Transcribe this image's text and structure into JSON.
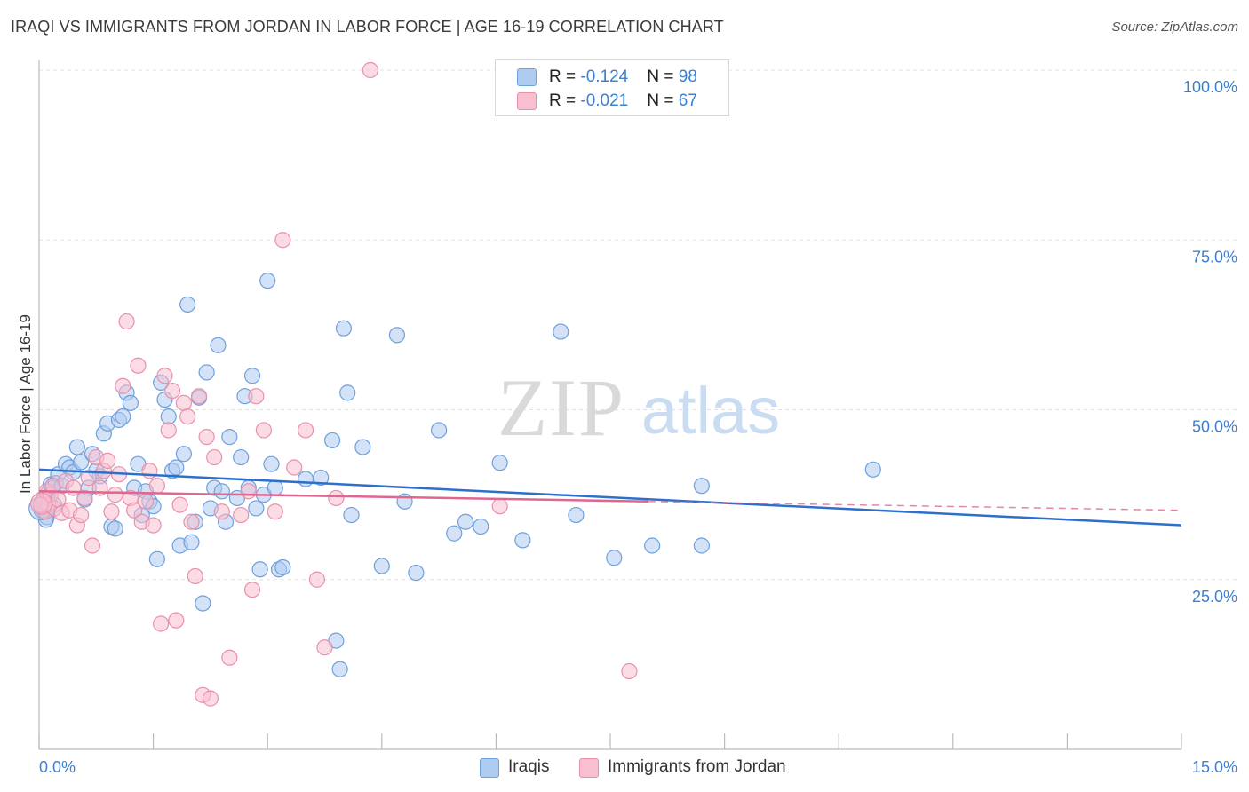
{
  "title": "IRAQI VS IMMIGRANTS FROM JORDAN IN LABOR FORCE | AGE 16-19 CORRELATION CHART",
  "source": "Source: ZipAtlas.com",
  "watermark": {
    "zip": "ZIP",
    "atlas": "atlas"
  },
  "legend": {
    "rows": [
      {
        "r_label": "R = ",
        "r_value": "-0.124",
        "n_label": "N = ",
        "n_value": "98",
        "color": "#aecbf0"
      },
      {
        "r_label": "R = ",
        "r_value": "-0.021",
        "n_label": "N = ",
        "n_value": "67",
        "color": "#f7bfd0"
      }
    ]
  },
  "bottom_legend": [
    {
      "label": "Iraqis",
      "color": "#aecbf0"
    },
    {
      "label": "Immigrants from Jordan",
      "color": "#f7bfd0"
    }
  ],
  "colors": {
    "blue_fill": "#aecbf0",
    "blue_stroke": "#6ea0dc",
    "blue_line": "#2d6fcc",
    "pink_fill": "#f7bfd0",
    "pink_stroke": "#e890ac",
    "pink_line": "#e0668f",
    "tick_text": "#3d7fd0",
    "grid": "#e0e0e0"
  },
  "chart_data": {
    "type": "scatter",
    "title": "IRAQI VS IMMIGRANTS FROM JORDAN IN LABOR FORCE | AGE 16-19 CORRELATION CHART",
    "xlabel": "",
    "ylabel": "In Labor Force | Age 16-19",
    "xlim": [
      0,
      15
    ],
    "ylim": [
      0,
      100
    ],
    "x_tick_labels": [
      "0.0%",
      "15.0%"
    ],
    "y_ticks": [
      25,
      50,
      75,
      100
    ],
    "y_tick_labels": [
      "25.0%",
      "50.0%",
      "75.0%",
      "100.0%"
    ],
    "grid": "horizontal dashed",
    "legend_position": "top-center",
    "series": [
      {
        "name": "Iraqis",
        "r": -0.124,
        "n": 98,
        "trend": {
          "x0": 0,
          "y0": 41.2,
          "x1": 15,
          "y1": 33.0,
          "dashed_from": null
        },
        "points": [
          [
            0.05,
            35.0
          ],
          [
            0.08,
            36.5
          ],
          [
            0.1,
            34.2
          ],
          [
            0.12,
            37.8
          ],
          [
            0.15,
            39.0
          ],
          [
            0.18,
            38.5
          ],
          [
            0.2,
            36.0
          ],
          [
            0.22,
            39.2
          ],
          [
            0.25,
            40.5
          ],
          [
            0.3,
            38.8
          ],
          [
            0.35,
            42.0
          ],
          [
            0.4,
            41.5
          ],
          [
            0.45,
            40.8
          ],
          [
            0.5,
            44.5
          ],
          [
            0.55,
            42.3
          ],
          [
            0.6,
            36.8
          ],
          [
            0.65,
            38.5
          ],
          [
            0.7,
            43.5
          ],
          [
            0.75,
            41.0
          ],
          [
            0.8,
            40.2
          ],
          [
            0.85,
            46.5
          ],
          [
            0.9,
            48.0
          ],
          [
            0.95,
            32.8
          ],
          [
            1.0,
            32.5
          ],
          [
            1.05,
            48.5
          ],
          [
            1.1,
            49.0
          ],
          [
            1.15,
            52.5
          ],
          [
            1.2,
            51.0
          ],
          [
            1.25,
            38.5
          ],
          [
            1.3,
            42.0
          ],
          [
            1.35,
            34.5
          ],
          [
            1.4,
            38.0
          ],
          [
            1.45,
            36.5
          ],
          [
            1.5,
            35.8
          ],
          [
            1.55,
            28.0
          ],
          [
            1.6,
            54.0
          ],
          [
            1.65,
            51.5
          ],
          [
            1.7,
            49.0
          ],
          [
            1.75,
            41.0
          ],
          [
            1.8,
            41.5
          ],
          [
            1.85,
            30.0
          ],
          [
            1.9,
            43.5
          ],
          [
            1.95,
            65.5
          ],
          [
            2.0,
            30.5
          ],
          [
            2.05,
            33.5
          ],
          [
            2.1,
            51.8
          ],
          [
            2.15,
            21.5
          ],
          [
            2.2,
            55.5
          ],
          [
            2.25,
            35.5
          ],
          [
            2.3,
            38.5
          ],
          [
            2.35,
            59.5
          ],
          [
            2.4,
            38.0
          ],
          [
            2.45,
            33.5
          ],
          [
            2.5,
            46.0
          ],
          [
            2.6,
            37.0
          ],
          [
            2.65,
            43.0
          ],
          [
            2.7,
            52.0
          ],
          [
            2.75,
            38.5
          ],
          [
            2.8,
            55.0
          ],
          [
            2.85,
            35.5
          ],
          [
            2.9,
            26.5
          ],
          [
            2.95,
            37.5
          ],
          [
            3.0,
            69.0
          ],
          [
            3.05,
            42.0
          ],
          [
            3.1,
            38.5
          ],
          [
            3.15,
            26.5
          ],
          [
            3.2,
            26.8
          ],
          [
            3.5,
            39.8
          ],
          [
            3.7,
            40.0
          ],
          [
            3.85,
            45.5
          ],
          [
            3.9,
            16.0
          ],
          [
            3.95,
            11.8
          ],
          [
            4.0,
            62.0
          ],
          [
            4.05,
            52.5
          ],
          [
            4.1,
            34.5
          ],
          [
            4.25,
            44.5
          ],
          [
            4.5,
            27.0
          ],
          [
            4.7,
            61.0
          ],
          [
            4.8,
            36.5
          ],
          [
            4.95,
            26.0
          ],
          [
            5.25,
            47.0
          ],
          [
            5.45,
            31.8
          ],
          [
            5.6,
            33.5
          ],
          [
            5.8,
            32.8
          ],
          [
            6.05,
            42.2
          ],
          [
            6.35,
            30.8
          ],
          [
            6.85,
            61.5
          ],
          [
            7.05,
            34.5
          ],
          [
            7.55,
            28.2
          ],
          [
            8.05,
            30.0
          ],
          [
            8.7,
            38.8
          ],
          [
            8.7,
            30.0
          ],
          [
            10.95,
            41.2
          ],
          [
            0.02,
            36.0
          ],
          [
            0.03,
            35.2
          ],
          [
            0.06,
            37.0
          ],
          [
            0.09,
            33.8
          ],
          [
            0.12,
            36.2
          ]
        ]
      },
      {
        "name": "Immigrants from Jordan",
        "r": -0.021,
        "n": 67,
        "trend": {
          "x0": 0,
          "y0": 38.0,
          "x1": 15,
          "y1": 35.2,
          "solid_until": 8.0
        },
        "points": [
          [
            0.05,
            36.5
          ],
          [
            0.08,
            35.0
          ],
          [
            0.1,
            38.0
          ],
          [
            0.12,
            36.0
          ],
          [
            0.15,
            37.5
          ],
          [
            0.18,
            38.8
          ],
          [
            0.2,
            35.5
          ],
          [
            0.25,
            36.8
          ],
          [
            0.3,
            34.8
          ],
          [
            0.35,
            39.5
          ],
          [
            0.4,
            35.2
          ],
          [
            0.45,
            38.5
          ],
          [
            0.5,
            33.0
          ],
          [
            0.55,
            34.5
          ],
          [
            0.6,
            37.0
          ],
          [
            0.65,
            40.0
          ],
          [
            0.7,
            30.0
          ],
          [
            0.75,
            43.0
          ],
          [
            0.8,
            38.5
          ],
          [
            0.85,
            41.0
          ],
          [
            0.9,
            42.5
          ],
          [
            0.95,
            35.0
          ],
          [
            1.0,
            37.5
          ],
          [
            1.05,
            40.5
          ],
          [
            1.1,
            53.5
          ],
          [
            1.15,
            63.0
          ],
          [
            1.2,
            37.0
          ],
          [
            1.25,
            35.2
          ],
          [
            1.3,
            56.5
          ],
          [
            1.35,
            33.5
          ],
          [
            1.4,
            36.5
          ],
          [
            1.45,
            41.0
          ],
          [
            1.5,
            33.0
          ],
          [
            1.55,
            38.8
          ],
          [
            1.6,
            18.5
          ],
          [
            1.65,
            55.0
          ],
          [
            1.7,
            47.0
          ],
          [
            1.75,
            52.8
          ],
          [
            1.8,
            19.0
          ],
          [
            1.85,
            36.0
          ],
          [
            1.9,
            51.0
          ],
          [
            1.95,
            49.0
          ],
          [
            2.0,
            33.5
          ],
          [
            2.05,
            25.5
          ],
          [
            2.1,
            52.0
          ],
          [
            2.15,
            8.0
          ],
          [
            2.2,
            46.0
          ],
          [
            2.25,
            7.5
          ],
          [
            2.3,
            43.0
          ],
          [
            2.4,
            35.0
          ],
          [
            2.5,
            13.5
          ],
          [
            2.65,
            34.5
          ],
          [
            2.75,
            38.0
          ],
          [
            2.8,
            23.5
          ],
          [
            2.85,
            52.0
          ],
          [
            2.95,
            47.0
          ],
          [
            3.1,
            35.0
          ],
          [
            3.2,
            75.0
          ],
          [
            3.35,
            41.5
          ],
          [
            3.5,
            47.0
          ],
          [
            3.65,
            25.0
          ],
          [
            3.75,
            15.0
          ],
          [
            3.9,
            37.0
          ],
          [
            4.35,
            100.0
          ],
          [
            6.05,
            35.8
          ],
          [
            7.75,
            11.5
          ],
          [
            0.02,
            36.0
          ]
        ]
      }
    ]
  }
}
